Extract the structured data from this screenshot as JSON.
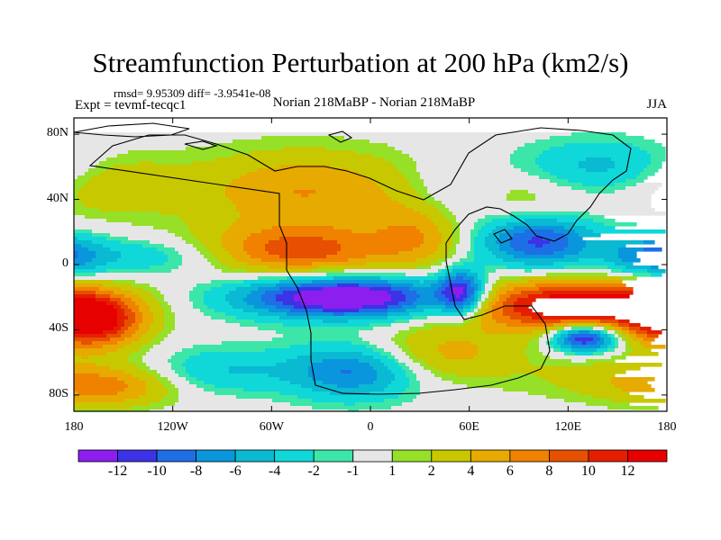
{
  "title": "Streamfunction Perturbation at 200 hPa (km2/s)",
  "stats_line": "rmsd= 9.95309 diff= -3.9541e-08",
  "experiment": "Expt = tevmf-tecqc1",
  "comparison": "Norian 218MaBP - Norian 218MaBP",
  "season": "JJA",
  "chart_data": {
    "type": "heatmap",
    "title": "Streamfunction Perturbation at 200 hPa (km2/s)",
    "x_range": [
      -180,
      180
    ],
    "y_range": [
      -90,
      90
    ],
    "x_ticks": [
      {
        "value": -180,
        "label": "180"
      },
      {
        "value": -120,
        "label": "120W"
      },
      {
        "value": -60,
        "label": "60W"
      },
      {
        "value": 0,
        "label": "0"
      },
      {
        "value": 60,
        "label": "60E"
      },
      {
        "value": 120,
        "label": "120E"
      },
      {
        "value": 180,
        "label": "180"
      }
    ],
    "y_ticks": [
      {
        "value": 80,
        "label": "80N"
      },
      {
        "value": 40,
        "label": "40N"
      },
      {
        "value": 0,
        "label": "0"
      },
      {
        "value": -40,
        "label": "40S"
      },
      {
        "value": -80,
        "label": "80S"
      }
    ],
    "levels": [
      -12,
      -10,
      -8,
      -6,
      -4,
      -2,
      -1,
      1,
      2,
      4,
      6,
      8,
      10,
      12
    ],
    "level_labels": [
      "-12",
      "-10",
      "-8",
      "-6",
      "-4",
      "-2",
      "-1",
      "1",
      "2",
      "4",
      "6",
      "8",
      "10",
      "12"
    ],
    "colors": [
      "#8c1ef0",
      "#3c32e6",
      "#1e6ee6",
      "#0a96dc",
      "#0ab9d2",
      "#10d8d8",
      "#3ce6a8",
      "#e6e6e6",
      "#96e028",
      "#c8c800",
      "#e6aa00",
      "#f08200",
      "#e65000",
      "#e61e00",
      "#e60000"
    ],
    "anomalies": [
      {
        "lon": -15,
        "lat": -20,
        "amp": -16,
        "slon": 45,
        "slat": 9
      },
      {
        "lon": 55,
        "lat": -17,
        "amp": -12,
        "slon": 10,
        "slat": 10
      },
      {
        "lon": -170,
        "lat": -35,
        "amp": 13,
        "slon": 22,
        "slat": 12
      },
      {
        "lon": 125,
        "lat": -25,
        "amp": 15,
        "slon": 48,
        "slat": 11
      },
      {
        "lon": 130,
        "lat": -45,
        "amp": -14,
        "slon": 14,
        "slat": 6
      },
      {
        "lon": 100,
        "lat": 15,
        "amp": -13,
        "slon": 26,
        "slat": 12
      },
      {
        "lon": 170,
        "lat": 5,
        "amp": -7,
        "slon": 18,
        "slat": 10
      },
      {
        "lon": 50,
        "lat": 40,
        "amp": -3.5,
        "slon": 22,
        "slat": 15
      },
      {
        "lon": 140,
        "lat": 60,
        "amp": -5,
        "slon": 40,
        "slat": 12
      },
      {
        "lon": -140,
        "lat": 5,
        "amp": -4,
        "slon": 45,
        "slat": 8
      },
      {
        "lon": -45,
        "lat": 8,
        "amp": 9,
        "slon": 42,
        "slat": 11
      },
      {
        "lon": -40,
        "lat": 45,
        "amp": 6,
        "slon": 50,
        "slat": 18
      },
      {
        "lon": -160,
        "lat": 50,
        "amp": 4,
        "slon": 30,
        "slat": 14
      },
      {
        "lon": 30,
        "lat": 20,
        "amp": 5,
        "slon": 20,
        "slat": 15
      },
      {
        "lon": -10,
        "lat": -65,
        "amp": -9,
        "slon": 28,
        "slat": 12
      },
      {
        "lon": -90,
        "lat": -65,
        "amp": -4,
        "slon": 30,
        "slat": 10
      },
      {
        "lon": -160,
        "lat": -75,
        "amp": 6,
        "slon": 30,
        "slat": 9
      },
      {
        "lon": 40,
        "lat": -55,
        "amp": 5,
        "slon": 35,
        "slat": 12
      },
      {
        "lon": 150,
        "lat": -70,
        "amp": 3,
        "slon": 40,
        "slat": 10
      },
      {
        "lon": 90,
        "lat": 30,
        "amp": 4,
        "slon": 30,
        "slat": 20
      }
    ]
  }
}
